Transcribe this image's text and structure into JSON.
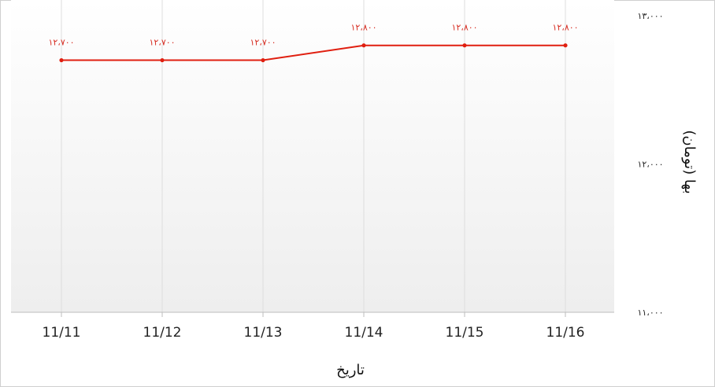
{
  "chart_data": {
    "type": "line",
    "categories": [
      "11/11",
      "11/12",
      "11/13",
      "11/14",
      "11/15",
      "11/16"
    ],
    "series": [
      {
        "values": [
          12700,
          12700,
          12700,
          12800,
          12800,
          12800
        ],
        "value_labels": [
          "۱۲،۷۰۰",
          "۱۲،۷۰۰",
          "۱۲،۷۰۰",
          "۱۲،۸۰۰",
          "۱۲،۸۰۰",
          "۱۲،۸۰۰"
        ],
        "color": "#e01f10"
      }
    ],
    "ylim": [
      11000,
      13000
    ],
    "yticks": [
      11000,
      12000,
      13000
    ],
    "ytick_labels": [
      "۱۱،۰۰۰",
      "۱۲،۰۰۰",
      "۱۳،۰۰۰"
    ],
    "xlabel": "تاریخ",
    "ylabel": "بها (تومان)",
    "y_axis_side": "right",
    "grid": "vertical",
    "background_gradient": [
      "#ffffff",
      "#eeeeee"
    ]
  }
}
